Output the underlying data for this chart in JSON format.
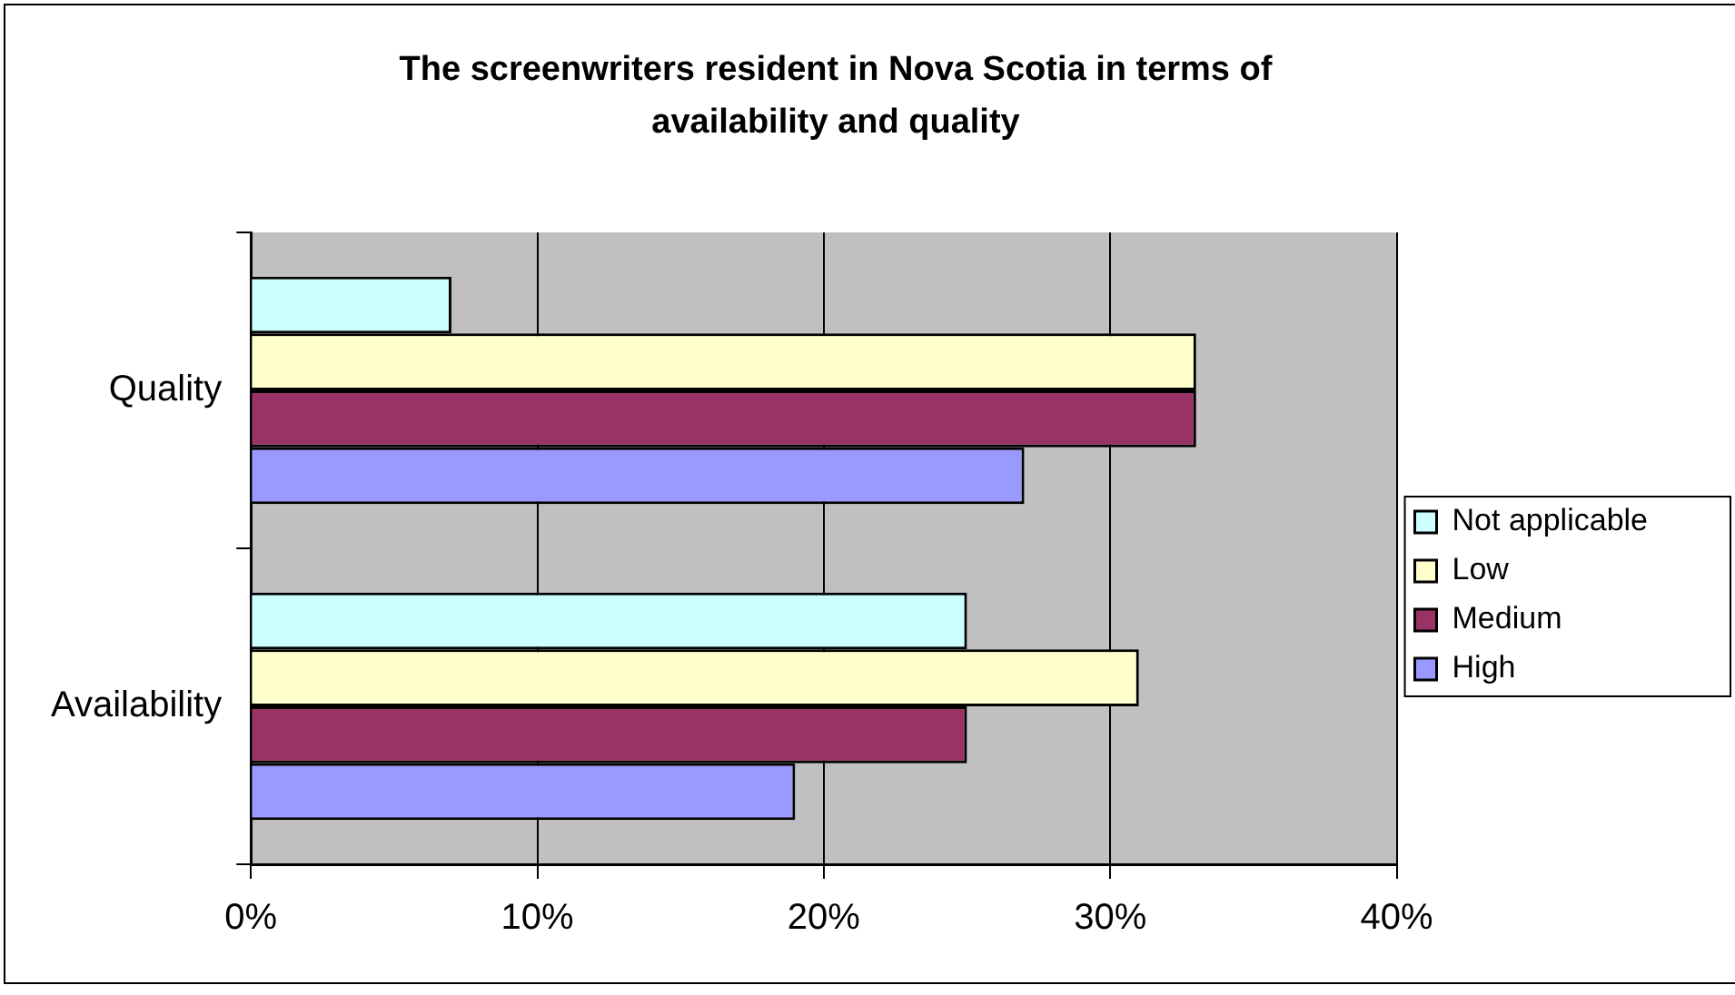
{
  "chart_data": {
    "type": "bar",
    "orientation": "horizontal",
    "title": "The screenwriters resident in Nova Scotia in terms of availability and quality",
    "categories": [
      "Quality",
      "Availability"
    ],
    "series": [
      {
        "name": "Not applicable",
        "color": "#ccffff",
        "values": [
          7,
          25
        ]
      },
      {
        "name": "Low",
        "color": "#ffffcc",
        "values": [
          33,
          31
        ]
      },
      {
        "name": "Medium",
        "color": "#993366",
        "values": [
          33,
          25
        ]
      },
      {
        "name": "High",
        "color": "#9999ff",
        "values": [
          27,
          19
        ]
      }
    ],
    "xlim": [
      0,
      40
    ],
    "xticks": [
      {
        "value": 0,
        "label": "0%"
      },
      {
        "value": 10,
        "label": "10%"
      },
      {
        "value": 20,
        "label": "20%"
      },
      {
        "value": 30,
        "label": "30%"
      },
      {
        "value": 40,
        "label": "40%"
      }
    ],
    "grid": "x",
    "legend": "right"
  }
}
